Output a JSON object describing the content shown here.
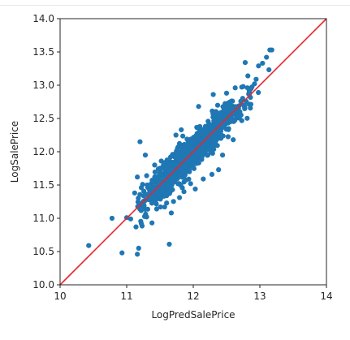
{
  "chart_data": {
    "type": "scatter",
    "title": "",
    "xlabel": "LogPredSalePrice",
    "ylabel": "LogSalePrice",
    "xlim": [
      10,
      14
    ],
    "ylim": [
      10,
      14
    ],
    "x_ticks": [
      "10",
      "11",
      "12",
      "13",
      "14"
    ],
    "y_ticks": [
      "10.0",
      "10.5",
      "11.0",
      "11.5",
      "12.0",
      "12.5",
      "13.0",
      "13.5",
      "14.0"
    ],
    "grid": false,
    "legend": "none",
    "point_color": "#1f77b4",
    "reference_line": {
      "x": [
        10,
        14
      ],
      "y": [
        10,
        14
      ],
      "color": "#e8262b"
    },
    "cloud": {
      "description_visible": false,
      "count": 1200,
      "x_center": 12.0,
      "x_sd": 0.36,
      "x_min": 11.15,
      "x_max": 13.15,
      "residual_sd": 0.12
    },
    "points": [
      [
        10.43,
        10.59
      ],
      [
        10.93,
        10.48
      ],
      [
        11.16,
        10.46
      ],
      [
        11.18,
        10.55
      ],
      [
        10.78,
        11.0
      ],
      [
        11.0,
        11.01
      ],
      [
        11.06,
        10.99
      ],
      [
        11.14,
        10.87
      ],
      [
        11.22,
        10.92
      ],
      [
        11.3,
        11.02
      ],
      [
        11.38,
        10.93
      ],
      [
        11.45,
        11.14
      ],
      [
        11.64,
        10.61
      ],
      [
        11.57,
        11.17
      ],
      [
        11.67,
        11.08
      ],
      [
        11.6,
        11.23
      ],
      [
        11.12,
        11.38
      ],
      [
        11.22,
        11.46
      ],
      [
        11.16,
        11.62
      ],
      [
        11.3,
        11.64
      ],
      [
        11.42,
        11.8
      ],
      [
        11.52,
        11.86
      ],
      [
        12.03,
        11.44
      ],
      [
        11.96,
        11.52
      ],
      [
        12.15,
        11.59
      ],
      [
        12.28,
        11.66
      ],
      [
        12.38,
        11.73
      ],
      [
        12.44,
        11.95
      ],
      [
        12.6,
        12.18
      ],
      [
        12.47,
        12.45
      ],
      [
        12.58,
        12.63
      ],
      [
        12.7,
        12.6
      ],
      [
        12.5,
        12.88
      ],
      [
        12.63,
        12.96
      ],
      [
        12.75,
        12.98
      ],
      [
        12.84,
        12.92
      ],
      [
        12.92,
        13.02
      ],
      [
        12.78,
        13.34
      ],
      [
        12.82,
        13.14
      ],
      [
        12.98,
        13.29
      ],
      [
        13.04,
        13.33
      ],
      [
        13.1,
        13.42
      ],
      [
        13.15,
        13.53
      ],
      [
        13.18,
        13.53
      ],
      [
        11.2,
        12.15
      ],
      [
        11.28,
        11.95
      ],
      [
        11.74,
        12.25
      ],
      [
        11.82,
        12.33
      ],
      [
        12.08,
        12.68
      ],
      [
        12.3,
        12.86
      ],
      [
        11.48,
        11.35
      ],
      [
        11.86,
        11.4
      ]
    ]
  }
}
